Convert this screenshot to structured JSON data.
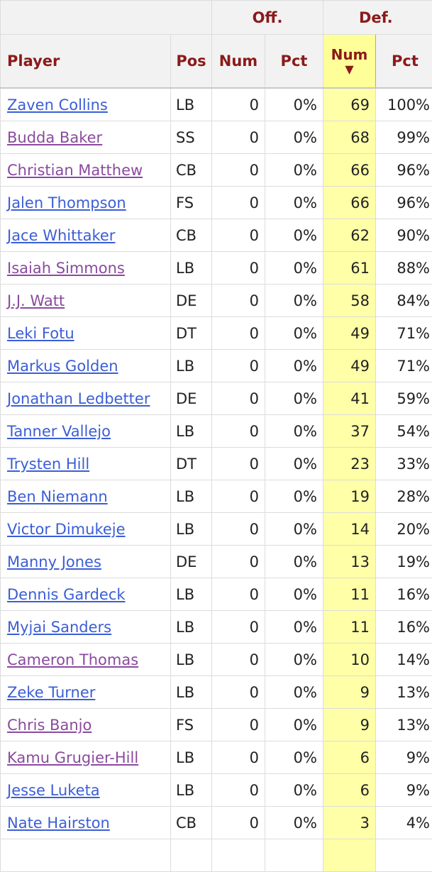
{
  "header": {
    "group_off": "Off.",
    "group_def": "Def.",
    "col_player": "Player",
    "col_pos": "Pos",
    "col_off_num": "Num",
    "col_off_pct": "Pct",
    "col_def_num": "Num",
    "col_def_pct": "Pct",
    "sort_arrow": "▼"
  },
  "colors": {
    "header_text": "#8b1a1a",
    "sorted_column_bg": "#ffffa8",
    "link_unvisited": "#3b5ed6",
    "link_visited": "#8a4a9e"
  },
  "rows": [
    {
      "player": "Zaven Collins",
      "visited": false,
      "pos": "LB",
      "off_num": "0",
      "off_pct": "0%",
      "def_num": "69",
      "def_pct": "100%"
    },
    {
      "player": "Budda Baker",
      "visited": true,
      "pos": "SS",
      "off_num": "0",
      "off_pct": "0%",
      "def_num": "68",
      "def_pct": "99%"
    },
    {
      "player": "Christian Matthew",
      "visited": true,
      "pos": "CB",
      "off_num": "0",
      "off_pct": "0%",
      "def_num": "66",
      "def_pct": "96%"
    },
    {
      "player": "Jalen Thompson",
      "visited": false,
      "pos": "FS",
      "off_num": "0",
      "off_pct": "0%",
      "def_num": "66",
      "def_pct": "96%"
    },
    {
      "player": "Jace Whittaker",
      "visited": false,
      "pos": "CB",
      "off_num": "0",
      "off_pct": "0%",
      "def_num": "62",
      "def_pct": "90%"
    },
    {
      "player": "Isaiah Simmons",
      "visited": true,
      "pos": "LB",
      "off_num": "0",
      "off_pct": "0%",
      "def_num": "61",
      "def_pct": "88%"
    },
    {
      "player": "J.J. Watt",
      "visited": true,
      "pos": "DE",
      "off_num": "0",
      "off_pct": "0%",
      "def_num": "58",
      "def_pct": "84%"
    },
    {
      "player": "Leki Fotu",
      "visited": false,
      "pos": "DT",
      "off_num": "0",
      "off_pct": "0%",
      "def_num": "49",
      "def_pct": "71%"
    },
    {
      "player": "Markus Golden",
      "visited": false,
      "pos": "LB",
      "off_num": "0",
      "off_pct": "0%",
      "def_num": "49",
      "def_pct": "71%"
    },
    {
      "player": "Jonathan Ledbetter",
      "visited": false,
      "pos": "DE",
      "off_num": "0",
      "off_pct": "0%",
      "def_num": "41",
      "def_pct": "59%"
    },
    {
      "player": "Tanner Vallejo",
      "visited": false,
      "pos": "LB",
      "off_num": "0",
      "off_pct": "0%",
      "def_num": "37",
      "def_pct": "54%"
    },
    {
      "player": "Trysten Hill",
      "visited": false,
      "pos": "DT",
      "off_num": "0",
      "off_pct": "0%",
      "def_num": "23",
      "def_pct": "33%"
    },
    {
      "player": "Ben Niemann",
      "visited": false,
      "pos": "LB",
      "off_num": "0",
      "off_pct": "0%",
      "def_num": "19",
      "def_pct": "28%"
    },
    {
      "player": "Victor Dimukeje",
      "visited": false,
      "pos": "LB",
      "off_num": "0",
      "off_pct": "0%",
      "def_num": "14",
      "def_pct": "20%"
    },
    {
      "player": "Manny Jones",
      "visited": false,
      "pos": "DE",
      "off_num": "0",
      "off_pct": "0%",
      "def_num": "13",
      "def_pct": "19%"
    },
    {
      "player": "Dennis Gardeck",
      "visited": false,
      "pos": "LB",
      "off_num": "0",
      "off_pct": "0%",
      "def_num": "11",
      "def_pct": "16%"
    },
    {
      "player": "Myjai Sanders",
      "visited": false,
      "pos": "LB",
      "off_num": "0",
      "off_pct": "0%",
      "def_num": "11",
      "def_pct": "16%"
    },
    {
      "player": "Cameron Thomas",
      "visited": true,
      "pos": "LB",
      "off_num": "0",
      "off_pct": "0%",
      "def_num": "10",
      "def_pct": "14%"
    },
    {
      "player": "Zeke Turner",
      "visited": false,
      "pos": "LB",
      "off_num": "0",
      "off_pct": "0%",
      "def_num": "9",
      "def_pct": "13%"
    },
    {
      "player": "Chris Banjo",
      "visited": true,
      "pos": "FS",
      "off_num": "0",
      "off_pct": "0%",
      "def_num": "9",
      "def_pct": "13%"
    },
    {
      "player": "Kamu Grugier-Hill",
      "visited": true,
      "pos": "LB",
      "off_num": "0",
      "off_pct": "0%",
      "def_num": "6",
      "def_pct": "9%"
    },
    {
      "player": "Jesse Luketa",
      "visited": false,
      "pos": "LB",
      "off_num": "0",
      "off_pct": "0%",
      "def_num": "6",
      "def_pct": "9%"
    },
    {
      "player": "Nate Hairston",
      "visited": false,
      "pos": "CB",
      "off_num": "0",
      "off_pct": "0%",
      "def_num": "3",
      "def_pct": "4%"
    },
    {
      "player": "",
      "visited": false,
      "pos": "",
      "off_num": "",
      "off_pct": "",
      "def_num": "",
      "def_pct": ""
    }
  ]
}
